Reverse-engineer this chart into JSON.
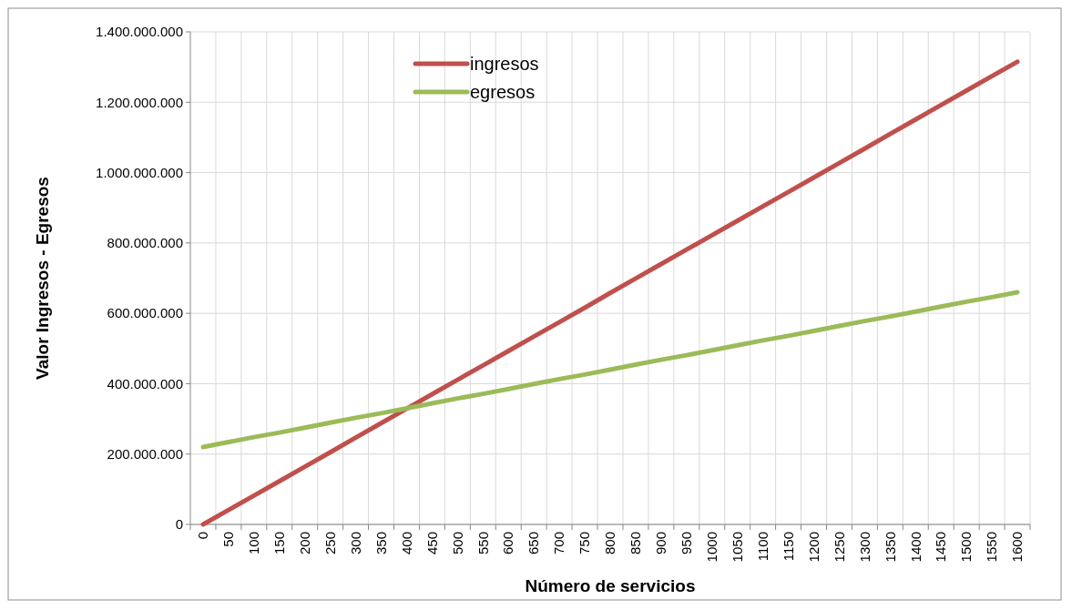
{
  "chart_data": {
    "type": "line",
    "xlabel": "Número de servicios",
    "ylabel": "Valor Ingresos - Egresos",
    "categories": [
      "0",
      "50",
      "100",
      "150",
      "200",
      "250",
      "300",
      "350",
      "400",
      "450",
      "500",
      "550",
      "600",
      "650",
      "700",
      "750",
      "800",
      "850",
      "900",
      "950",
      "1000",
      "1050",
      "1100",
      "1150",
      "1200",
      "1250",
      "1300",
      "1350",
      "1400",
      "1450",
      "1500",
      "1550",
      "1600"
    ],
    "series": [
      {
        "name": "ingresos",
        "color": "#c0504d",
        "values": [
          0,
          41000000,
          82000000,
          123000000,
          164000000,
          205000000,
          247000000,
          288000000,
          329000000,
          370000000,
          411000000,
          452000000,
          493000000,
          534000000,
          575000000,
          616000000,
          658000000,
          699000000,
          740000000,
          781000000,
          822000000,
          863000000,
          904000000,
          945000000,
          986000000,
          1027000000,
          1068000000,
          1110000000,
          1151000000,
          1192000000,
          1233000000,
          1274000000,
          1315000000
        ]
      },
      {
        "name": "egresos",
        "color": "#9bbb59",
        "values": [
          220000000,
          234000000,
          248000000,
          261000000,
          275000000,
          289000000,
          303000000,
          316000000,
          330000000,
          344000000,
          358000000,
          371000000,
          385000000,
          399000000,
          413000000,
          426000000,
          440000000,
          454000000,
          468000000,
          481000000,
          495000000,
          509000000,
          523000000,
          536000000,
          550000000,
          564000000,
          578000000,
          591000000,
          605000000,
          619000000,
          633000000,
          646000000,
          660000000
        ]
      }
    ],
    "ylim": [
      0,
      1400000000
    ],
    "yticks": [
      0,
      {
        "value": 200000000,
        "label": "200.000.000"
      },
      {
        "value": 400000000,
        "label": "400.000.000"
      },
      {
        "value": 600000000,
        "label": "600.000.000"
      },
      {
        "value": 800000000,
        "label": "800.000.000"
      },
      {
        "value": 1000000000,
        "label": "1.000.000.000"
      },
      {
        "value": 1200000000,
        "label": "1.200.000.000"
      },
      {
        "value": 1400000000,
        "label": "1.400.000.000"
      }
    ],
    "grid": true,
    "legend": "top",
    "marker": "none",
    "line_style": "solid"
  }
}
